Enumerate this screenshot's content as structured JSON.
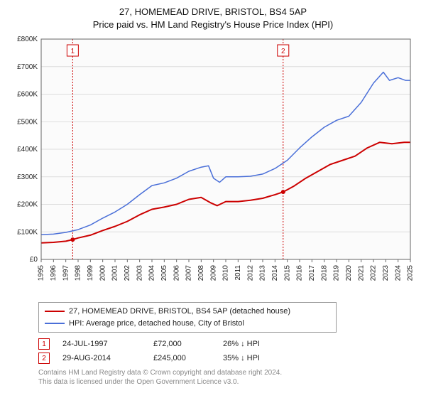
{
  "title": {
    "line1": "27, HOMEMEAD DRIVE, BRISTOL, BS4 5AP",
    "line2": "Price paid vs. HM Land Registry's House Price Index (HPI)"
  },
  "title_fontsize": 13,
  "chart": {
    "type": "line",
    "background_color": "#ffffff",
    "plot_background_color": "#fbfbfb",
    "border_color": "#666666",
    "grid_color": "#dddddd",
    "y": {
      "min": 0,
      "max": 800000,
      "step": 100000,
      "ticklabels": [
        "£0",
        "£100K",
        "£200K",
        "£300K",
        "£400K",
        "£500K",
        "£600K",
        "£700K",
        "£800K"
      ],
      "label_fontsize": 10
    },
    "x": {
      "min": 1995,
      "max": 2025,
      "step": 1,
      "ticklabels": [
        "1995",
        "1996",
        "1997",
        "1998",
        "1999",
        "2000",
        "2001",
        "2002",
        "2003",
        "2004",
        "2005",
        "2006",
        "2007",
        "2008",
        "2009",
        "2010",
        "2011",
        "2012",
        "2013",
        "2014",
        "2015",
        "2016",
        "2017",
        "2018",
        "2019",
        "2020",
        "2021",
        "2022",
        "2023",
        "2024",
        "2025"
      ],
      "label_fontsize": 10,
      "rotate": -90
    },
    "series": [
      {
        "name": "price_paid",
        "label": "27, HOMEMEAD DRIVE, BRISTOL, BS4 5AP (detached house)",
        "color": "#cc0000",
        "line_width": 2,
        "points": [
          [
            1995.0,
            60000
          ],
          [
            1996.0,
            62000
          ],
          [
            1997.0,
            66000
          ],
          [
            1997.56,
            72000
          ],
          [
            1998.0,
            78000
          ],
          [
            1999.0,
            88000
          ],
          [
            2000.0,
            105000
          ],
          [
            2001.0,
            120000
          ],
          [
            2002.0,
            138000
          ],
          [
            2003.0,
            162000
          ],
          [
            2004.0,
            182000
          ],
          [
            2005.0,
            190000
          ],
          [
            2006.0,
            200000
          ],
          [
            2007.0,
            218000
          ],
          [
            2008.0,
            225000
          ],
          [
            2008.8,
            205000
          ],
          [
            2009.3,
            195000
          ],
          [
            2010.0,
            210000
          ],
          [
            2011.0,
            210000
          ],
          [
            2012.0,
            215000
          ],
          [
            2013.0,
            222000
          ],
          [
            2014.0,
            235000
          ],
          [
            2014.66,
            245000
          ],
          [
            2015.5,
            265000
          ],
          [
            2016.5,
            295000
          ],
          [
            2017.5,
            320000
          ],
          [
            2018.5,
            345000
          ],
          [
            2019.5,
            360000
          ],
          [
            2020.5,
            375000
          ],
          [
            2021.5,
            405000
          ],
          [
            2022.5,
            425000
          ],
          [
            2023.5,
            420000
          ],
          [
            2024.5,
            425000
          ],
          [
            2025.0,
            425000
          ]
        ]
      },
      {
        "name": "hpi",
        "label": "HPI: Average price, detached house, City of Bristol",
        "color": "#4a6fd8",
        "line_width": 1.5,
        "points": [
          [
            1995.0,
            90000
          ],
          [
            1996.0,
            92000
          ],
          [
            1997.0,
            98000
          ],
          [
            1998.0,
            108000
          ],
          [
            1999.0,
            125000
          ],
          [
            2000.0,
            150000
          ],
          [
            2001.0,
            172000
          ],
          [
            2002.0,
            200000
          ],
          [
            2003.0,
            235000
          ],
          [
            2004.0,
            268000
          ],
          [
            2005.0,
            278000
          ],
          [
            2006.0,
            295000
          ],
          [
            2007.0,
            320000
          ],
          [
            2008.0,
            335000
          ],
          [
            2008.6,
            340000
          ],
          [
            2009.0,
            295000
          ],
          [
            2009.5,
            280000
          ],
          [
            2010.0,
            300000
          ],
          [
            2011.0,
            300000
          ],
          [
            2012.0,
            302000
          ],
          [
            2013.0,
            310000
          ],
          [
            2014.0,
            330000
          ],
          [
            2015.0,
            360000
          ],
          [
            2016.0,
            405000
          ],
          [
            2017.0,
            445000
          ],
          [
            2018.0,
            480000
          ],
          [
            2019.0,
            505000
          ],
          [
            2020.0,
            520000
          ],
          [
            2021.0,
            570000
          ],
          [
            2022.0,
            640000
          ],
          [
            2022.8,
            680000
          ],
          [
            2023.3,
            650000
          ],
          [
            2024.0,
            660000
          ],
          [
            2024.6,
            650000
          ],
          [
            2025.0,
            650000
          ]
        ]
      }
    ],
    "markers": [
      {
        "id": "1",
        "x": 1997.56,
        "y": 72000,
        "vline_color": "#cc0000",
        "vline_dash": "2,2"
      },
      {
        "id": "2",
        "x": 2014.66,
        "y": 245000,
        "vline_color": "#cc0000",
        "vline_dash": "2,2"
      }
    ]
  },
  "legend": {
    "border_color": "#999999",
    "fontsize": 11,
    "items": [
      {
        "color": "#cc0000",
        "label": "27, HOMEMEAD DRIVE, BRISTOL, BS4 5AP (detached house)"
      },
      {
        "color": "#4a6fd8",
        "label": "HPI: Average price, detached house, City of Bristol"
      }
    ]
  },
  "transactions": [
    {
      "id": "1",
      "date": "24-JUL-1997",
      "price": "£72,000",
      "delta": "26% ↓ HPI"
    },
    {
      "id": "2",
      "date": "29-AUG-2014",
      "price": "£245,000",
      "delta": "35% ↓ HPI"
    }
  ],
  "attribution": {
    "line1": "Contains HM Land Registry data © Crown copyright and database right 2024.",
    "line2": "This data is licensed under the Open Government Licence v3.0."
  },
  "marker_box": {
    "border_color": "#cc0000",
    "text_color": "#cc0000"
  }
}
